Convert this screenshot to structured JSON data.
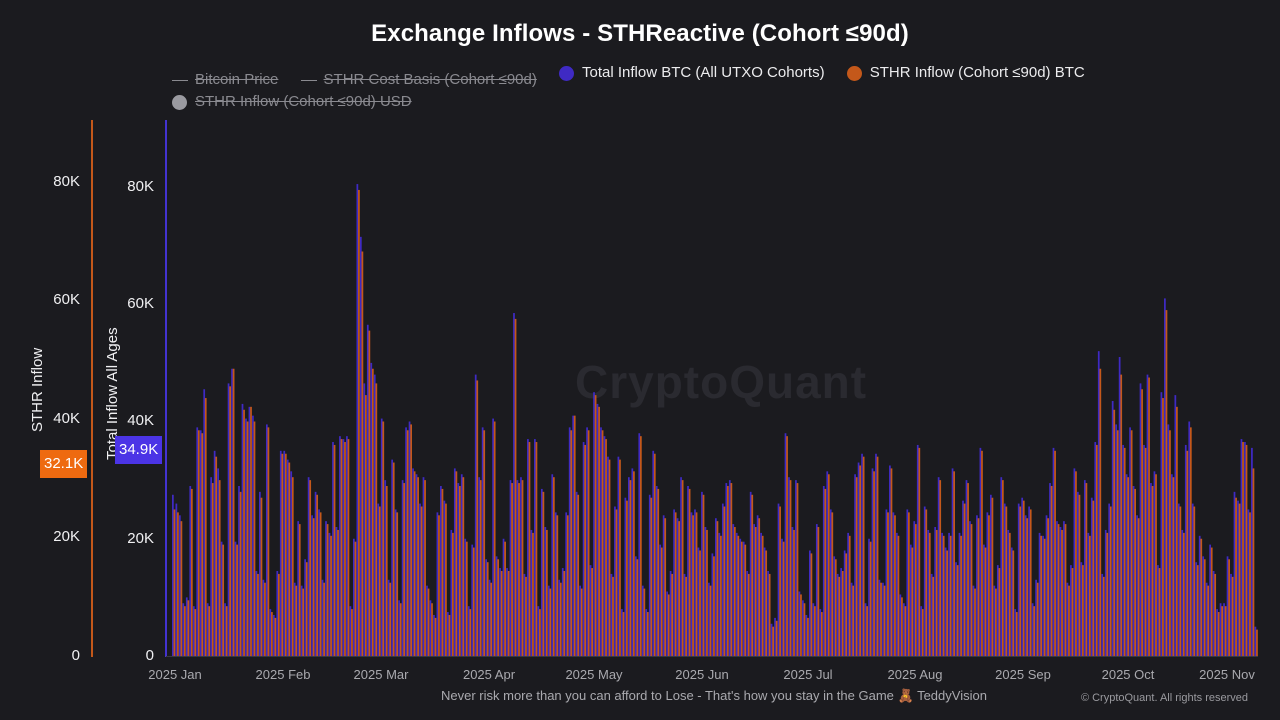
{
  "header": {
    "title": "Exchange Inflows - STHReactive (Cohort ≤90d)"
  },
  "legend": [
    {
      "label": "Bitcoin Price",
      "type": "line",
      "active": false,
      "color": "#8a8a90"
    },
    {
      "label": "STHR Cost Basis (Cohort ≤90d)",
      "type": "line",
      "active": false,
      "color": "#8a8a90"
    },
    {
      "label": "Total Inflow BTC (All UTXO Cohorts)",
      "type": "dot",
      "active": true,
      "color": "#3f2ac4"
    },
    {
      "label": "STHR Inflow (Cohort ≤90d) BTC",
      "type": "dot",
      "active": true,
      "color": "#c4581a"
    },
    {
      "label": "STHR Inflow (Cohort ≤90d) USD",
      "type": "dot",
      "active": false,
      "color": "#9a9aa0"
    }
  ],
  "axes": {
    "left": {
      "label": "STHR Inflow",
      "ticks": [
        "80K",
        "60K",
        "40K",
        "20K",
        "0"
      ],
      "badge": "32.1K",
      "badge_color": "#ee6a10",
      "line_color": "#c4581a"
    },
    "right": {
      "label": "Total Inflow All Ages",
      "ticks": [
        "80K",
        "60K",
        "40K",
        "20K",
        "0"
      ],
      "badge": "34.9K",
      "badge_color": "#4b34e6",
      "line_color": "#4433d0"
    },
    "x_ticks": [
      "2025 Jan",
      "2025 Feb",
      "2025 Mar",
      "2025 Apr",
      "2025 May",
      "2025 Jun",
      "2025 Jul",
      "2025 Aug",
      "2025 Sep",
      "2025 Oct",
      "2025 Nov"
    ]
  },
  "watermark": "CryptoQuant",
  "footer": {
    "note": "Never risk more than you can afford to Lose - That's how you stay in the Game 🧸 TeddyVision",
    "copyright": "© CryptoQuant. All rights reserved"
  },
  "chart_data": {
    "type": "bar",
    "title": "Exchange Inflows - STHReactive (Cohort ≤90d)",
    "xlabel": "",
    "ylabel_left": "STHR Inflow",
    "ylabel_right": "Total Inflow All Ages",
    "ylim": [
      0,
      90000
    ],
    "x_range": [
      "2025-01-01",
      "2025-11-10"
    ],
    "grid": false,
    "legend_position": "top",
    "series": [
      {
        "name": "Total Inflow BTC (All UTXO Cohorts)",
        "axis": "right",
        "color": "#3f2ac4",
        "values": [
          27500,
          26000,
          24000,
          9000,
          10000,
          29000,
          8500,
          39000,
          38500,
          45500,
          9000,
          30500,
          35000,
          32000,
          19500,
          9000,
          46500,
          49000,
          19500,
          29000,
          43000,
          40500,
          42500,
          41000,
          14500,
          28000,
          13000,
          39500,
          8000,
          7000,
          14500,
          35000,
          35000,
          33500,
          31500,
          12500,
          23000,
          12000,
          16500,
          30500,
          24000,
          28000,
          25000,
          13000,
          23000,
          21000,
          36500,
          22000,
          37500,
          37000,
          37500,
          8500,
          20000,
          80500,
          71500,
          46500,
          56500,
          50000,
          48000,
          26000,
          40500,
          30000,
          13000,
          33500,
          25000,
          9500,
          30000,
          39000,
          40000,
          32000,
          31000,
          26000,
          30500,
          12000,
          9500,
          7000,
          24500,
          29000,
          26500,
          7500,
          21500,
          32000,
          29500,
          31000,
          20000,
          8500,
          19000,
          48000,
          30500,
          39000,
          16500,
          13000,
          40500,
          17000,
          15000,
          20000,
          15000,
          30000,
          58500,
          30000,
          30500,
          14000,
          37000,
          21500,
          37000,
          8500,
          28500,
          22000,
          12000,
          31000,
          24500,
          13000,
          15000,
          24500,
          39000,
          41000,
          28000,
          12000,
          36500,
          39000,
          15500,
          45000,
          43000,
          39000,
          37500,
          34000,
          14000,
          25500,
          34000,
          8000,
          27000,
          30500,
          32000,
          17000,
          38000,
          12000,
          8000,
          27500,
          35000,
          29000,
          19000,
          24000,
          11000,
          14500,
          25000,
          23500,
          30500,
          14000,
          29000,
          24500,
          25000,
          18500,
          28000,
          22000,
          12500,
          17500,
          23500,
          21000,
          26000,
          29500,
          30000,
          22500,
          21000,
          20000,
          19500,
          14500,
          28000,
          22500,
          24000,
          21000,
          18500,
          14500,
          5500,
          6500,
          26000,
          20000,
          38000,
          30500,
          22000,
          30000,
          11000,
          9500,
          7000,
          18000,
          9000,
          22500,
          8000,
          29000,
          31500,
          25000,
          17000,
          14000,
          15000,
          18000,
          21000,
          12500,
          31000,
          33000,
          34500,
          9000,
          20000,
          32000,
          34500,
          13000,
          12500,
          25000,
          32500,
          24500,
          21000,
          10500,
          9000,
          25000,
          19000,
          23000,
          36000,
          8500,
          25500,
          21500,
          14000,
          22000,
          30500,
          21000,
          18500,
          21000,
          32000,
          16000,
          21000,
          26500,
          30000,
          23000,
          12000,
          24000,
          35500,
          19000,
          24500,
          27500,
          12000,
          15500,
          30500,
          26000,
          21500,
          18500,
          8000,
          26000,
          27000,
          24000,
          25500,
          9000,
          13000,
          21000,
          20500,
          24000,
          29500,
          35500,
          23000,
          22000,
          23000,
          12500,
          15500,
          32000,
          28000,
          16000,
          30000,
          21000,
          27000,
          36500,
          52000,
          14000,
          21500,
          26000,
          43500,
          39500,
          51000,
          36000,
          31000,
          39000,
          29000,
          24000,
          46500,
          36000,
          48000,
          29500,
          31500,
          15500,
          45000,
          61000,
          39500,
          31000,
          44500,
          26000,
          21500,
          36000,
          40000,
          26000,
          16000,
          20500,
          17000,
          12500,
          19000,
          14500,
          8000,
          9000,
          9000,
          17000,
          14000,
          28000,
          26500,
          37000,
          36500,
          25000,
          35500,
          5000
        ],
        "note": "approximate daily values read from pixel heights; ~314 days Jan 1 – Nov 10, 2025"
      },
      {
        "name": "STHR Inflow (Cohort ≤90d) BTC",
        "axis": "left",
        "color": "#c4581a",
        "values": [
          25000,
          24500,
          23000,
          8500,
          9500,
          28500,
          8000,
          38500,
          38000,
          44000,
          8500,
          29500,
          34000,
          30000,
          19000,
          8500,
          46000,
          49000,
          19000,
          28000,
          42000,
          40000,
          42500,
          40000,
          14000,
          27000,
          12500,
          39000,
          7500,
          6500,
          14000,
          34500,
          34500,
          33000,
          30500,
          12000,
          22500,
          11500,
          16000,
          30000,
          23500,
          27500,
          24500,
          12500,
          22500,
          20500,
          36000,
          21500,
          37000,
          36500,
          37000,
          8000,
          19500,
          79500,
          69000,
          44500,
          55500,
          49000,
          46500,
          25500,
          40000,
          29000,
          12500,
          33000,
          24500,
          9000,
          29500,
          38500,
          39500,
          31500,
          30500,
          25500,
          30000,
          11500,
          9000,
          6500,
          24000,
          28500,
          26000,
          7000,
          21000,
          31500,
          29000,
          30500,
          19500,
          8000,
          18500,
          47000,
          30000,
          38500,
          16000,
          12500,
          40000,
          16500,
          14500,
          19500,
          14500,
          29500,
          57500,
          29500,
          30000,
          13500,
          36500,
          21000,
          36500,
          8000,
          28000,
          21500,
          11500,
          30500,
          24000,
          12500,
          14500,
          24000,
          38500,
          41000,
          27500,
          11500,
          36000,
          38500,
          15000,
          44500,
          42500,
          38500,
          37000,
          33500,
          13500,
          25000,
          33500,
          7500,
          26500,
          30000,
          31500,
          16500,
          37500,
          11500,
          7500,
          27000,
          34500,
          28500,
          18500,
          23500,
          10500,
          14000,
          24500,
          23000,
          30000,
          13500,
          28500,
          24000,
          24500,
          18000,
          27500,
          21500,
          12000,
          17000,
          23000,
          20500,
          25500,
          29000,
          29500,
          22000,
          20500,
          19500,
          19000,
          14000,
          27500,
          22000,
          23500,
          20500,
          18000,
          14000,
          5000,
          6000,
          25500,
          19500,
          37500,
          30000,
          21500,
          29500,
          10500,
          9000,
          6500,
          17500,
          8500,
          22000,
          7500,
          28500,
          31000,
          24500,
          16500,
          13500,
          14500,
          17500,
          20500,
          12000,
          30500,
          32500,
          34000,
          8500,
          19500,
          31500,
          34000,
          12500,
          12000,
          24500,
          32000,
          24000,
          20500,
          10000,
          8500,
          24500,
          18500,
          22500,
          35500,
          8000,
          25000,
          21000,
          13500,
          21500,
          30000,
          20500,
          18000,
          20500,
          31500,
          15500,
          20500,
          26000,
          29500,
          22500,
          11500,
          23500,
          35000,
          18500,
          24000,
          27000,
          11500,
          15000,
          30000,
          25500,
          21000,
          18000,
          7500,
          25500,
          26500,
          23500,
          25000,
          8500,
          12500,
          20500,
          20000,
          23500,
          29000,
          35000,
          22500,
          21500,
          22500,
          12000,
          15000,
          31500,
          27500,
          15500,
          29500,
          20500,
          26500,
          36000,
          49000,
          13500,
          21000,
          25500,
          42000,
          38500,
          48000,
          35500,
          30500,
          38500,
          28500,
          23500,
          45500,
          35500,
          47500,
          29000,
          31000,
          15000,
          44000,
          59000,
          38500,
          30500,
          42500,
          25500,
          21000,
          35000,
          39000,
          25500,
          15500,
          20000,
          16500,
          12000,
          18500,
          14000,
          7500,
          8500,
          8500,
          16500,
          13500,
          27000,
          26000,
          36500,
          36000,
          24500,
          32000,
          4500
        ],
        "note": "approximate daily values read from pixel heights"
      }
    ],
    "annotations": [
      {
        "axis": "left",
        "label": "32.1K",
        "type": "last-value-badge"
      },
      {
        "axis": "right",
        "label": "34.9K",
        "type": "last-value-badge"
      }
    ],
    "hidden_series": [
      "Bitcoin Price",
      "STHR Cost Basis (Cohort ≤90d)",
      "STHR Inflow (Cohort ≤90d) USD"
    ]
  }
}
